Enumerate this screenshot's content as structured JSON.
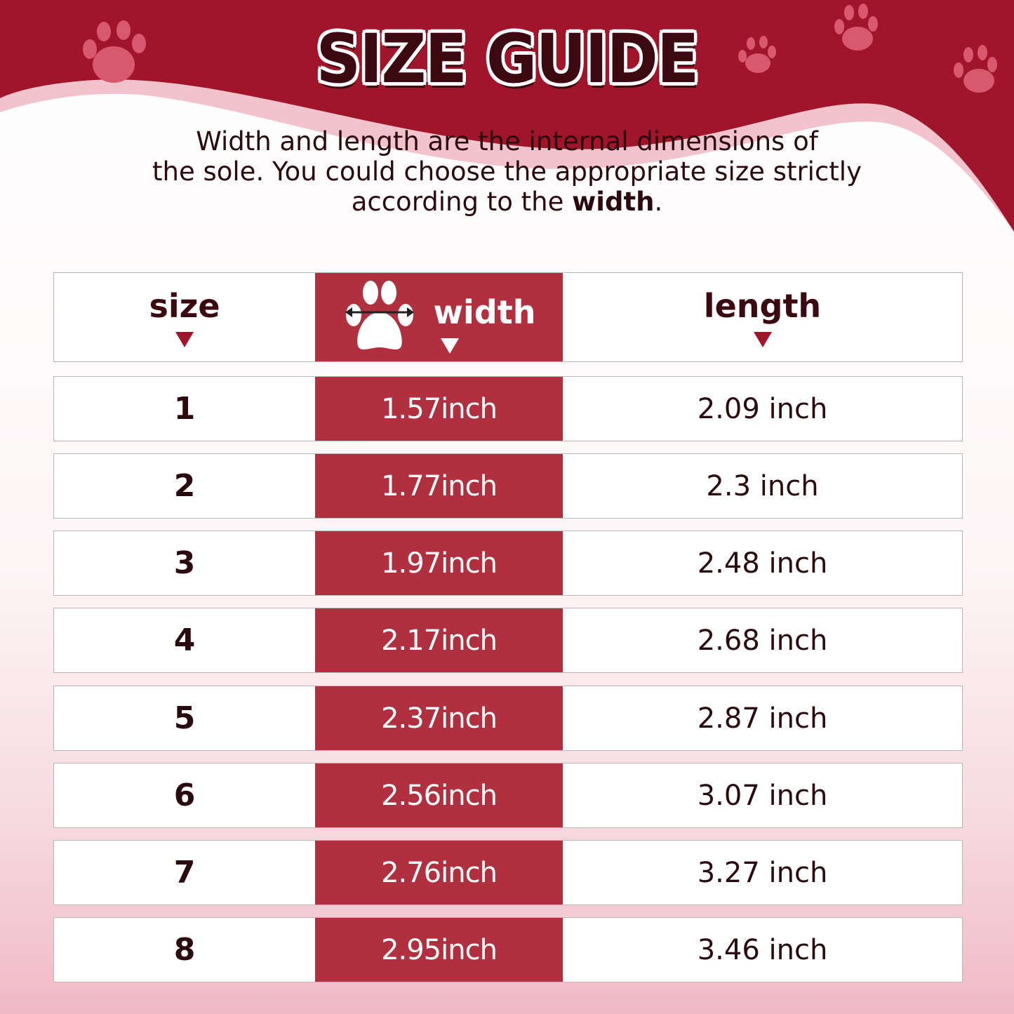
{
  "title": "SIZE GUIDE",
  "intro": {
    "line1": "Width and length are the internal dimensions of",
    "line2": "the sole. You could choose the appropriate size strictly",
    "line3_prefix": "according to the ",
    "line3_bold": "width",
    "line3_suffix": "."
  },
  "colors": {
    "brand_red": "#a01529",
    "width_column": "#b03040",
    "text_dark": "#2a0a0e"
  },
  "table": {
    "headers": {
      "size": "size",
      "width": "width",
      "length": "length"
    },
    "rows": [
      {
        "size": "1",
        "width": "1.57inch",
        "length": "2.09 inch"
      },
      {
        "size": "2",
        "width": "1.77inch",
        "length": "2.3 inch"
      },
      {
        "size": "3",
        "width": "1.97inch",
        "length": "2.48 inch"
      },
      {
        "size": "4",
        "width": "2.17inch",
        "length": "2.68 inch"
      },
      {
        "size": "5",
        "width": "2.37inch",
        "length": "2.87 inch"
      },
      {
        "size": "6",
        "width": "2.56inch",
        "length": "3.07 inch"
      },
      {
        "size": "7",
        "width": "2.76inch",
        "length": "3.27 inch"
      },
      {
        "size": "8",
        "width": "2.95inch",
        "length": "3.46 inch"
      }
    ]
  }
}
